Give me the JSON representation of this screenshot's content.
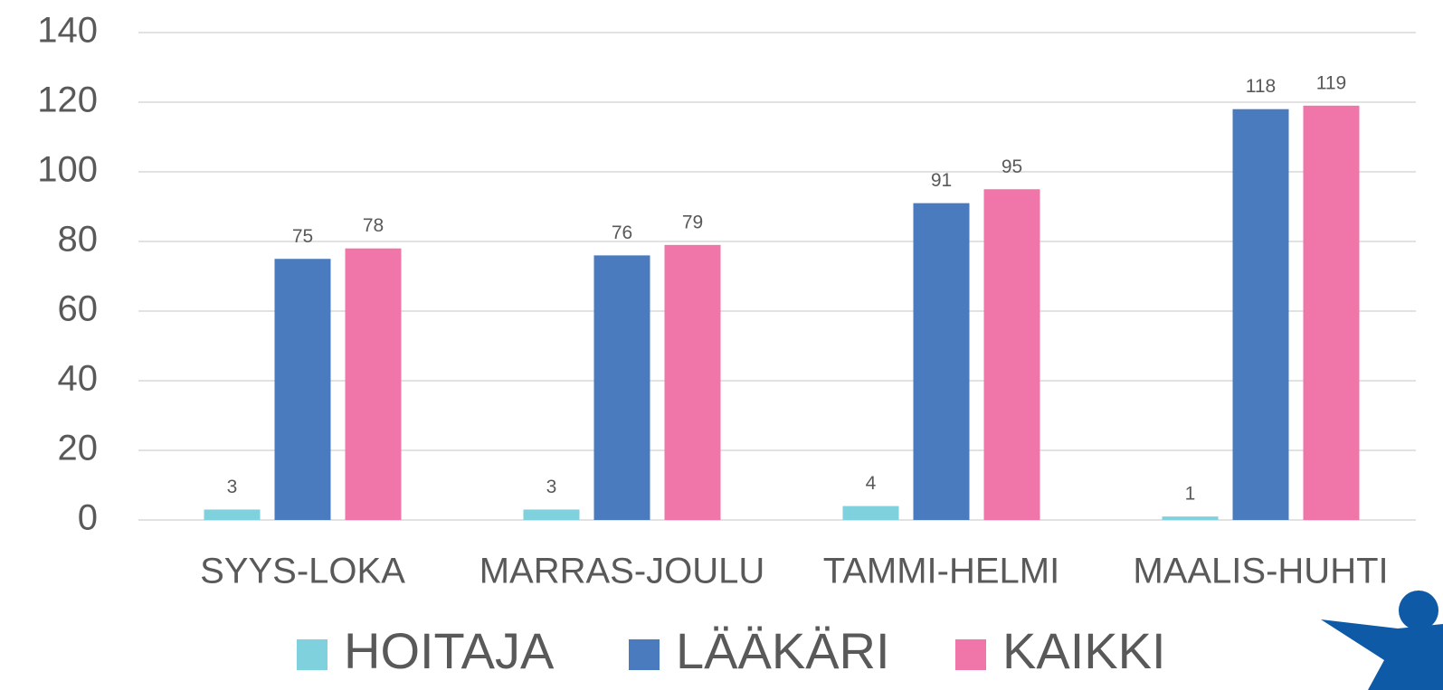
{
  "chart_data": {
    "type": "bar",
    "categories": [
      "SYYS-LOKA",
      "MARRAS-JOULU",
      "TAMMI-HELMI",
      "MAALIS-HUHTI"
    ],
    "series": [
      {
        "name": "HOITAJA",
        "color": "#7fd1de",
        "values": [
          3,
          3,
          4,
          1
        ]
      },
      {
        "name": "LÄÄKÄRI",
        "color": "#4a7bbf",
        "values": [
          75,
          76,
          91,
          118
        ]
      },
      {
        "name": "KAIKKI",
        "color": "#f075a8",
        "values": [
          78,
          79,
          95,
          119
        ]
      }
    ],
    "ylim": [
      0,
      140
    ],
    "yticks": [
      0,
      20,
      40,
      60,
      80,
      100,
      120,
      140
    ],
    "grid": true,
    "legend": "bottom"
  }
}
